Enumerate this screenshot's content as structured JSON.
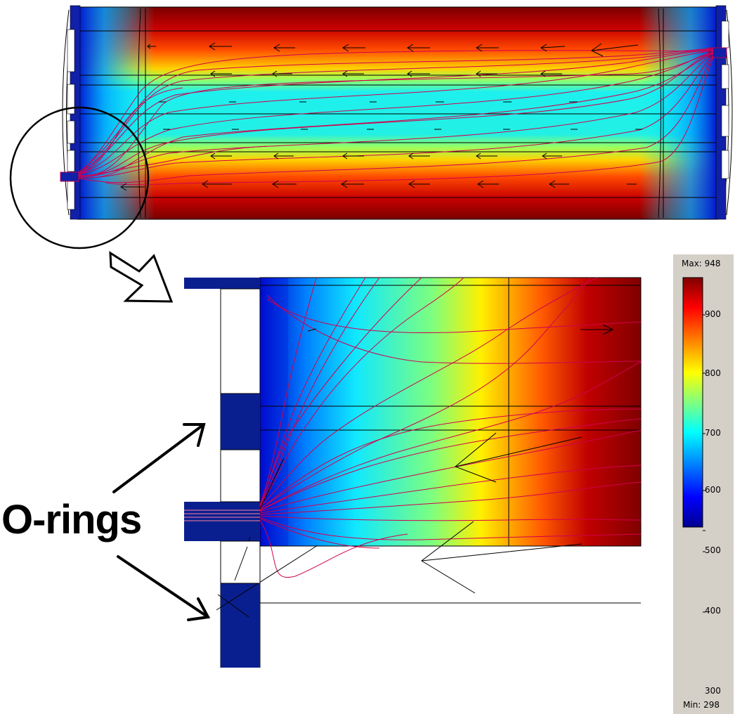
{
  "annotation": {
    "label": "O-rings"
  },
  "colorbar": {
    "max_label": "Max: 948",
    "min_label": "Min: 298",
    "max": 948,
    "min": 298,
    "ticks": [
      "900",
      "800",
      "700",
      "600",
      "500",
      "400",
      "300"
    ],
    "tick_values": [
      900,
      800,
      700,
      600,
      500,
      400,
      300
    ],
    "colormap": [
      "#00008f",
      "#0000ff",
      "#00ffff",
      "#ffff00",
      "#ff0000",
      "#800000"
    ]
  },
  "colors": {
    "outline": "#000000",
    "streamline": "#d1004f",
    "rim": "#0a1f8f"
  }
}
